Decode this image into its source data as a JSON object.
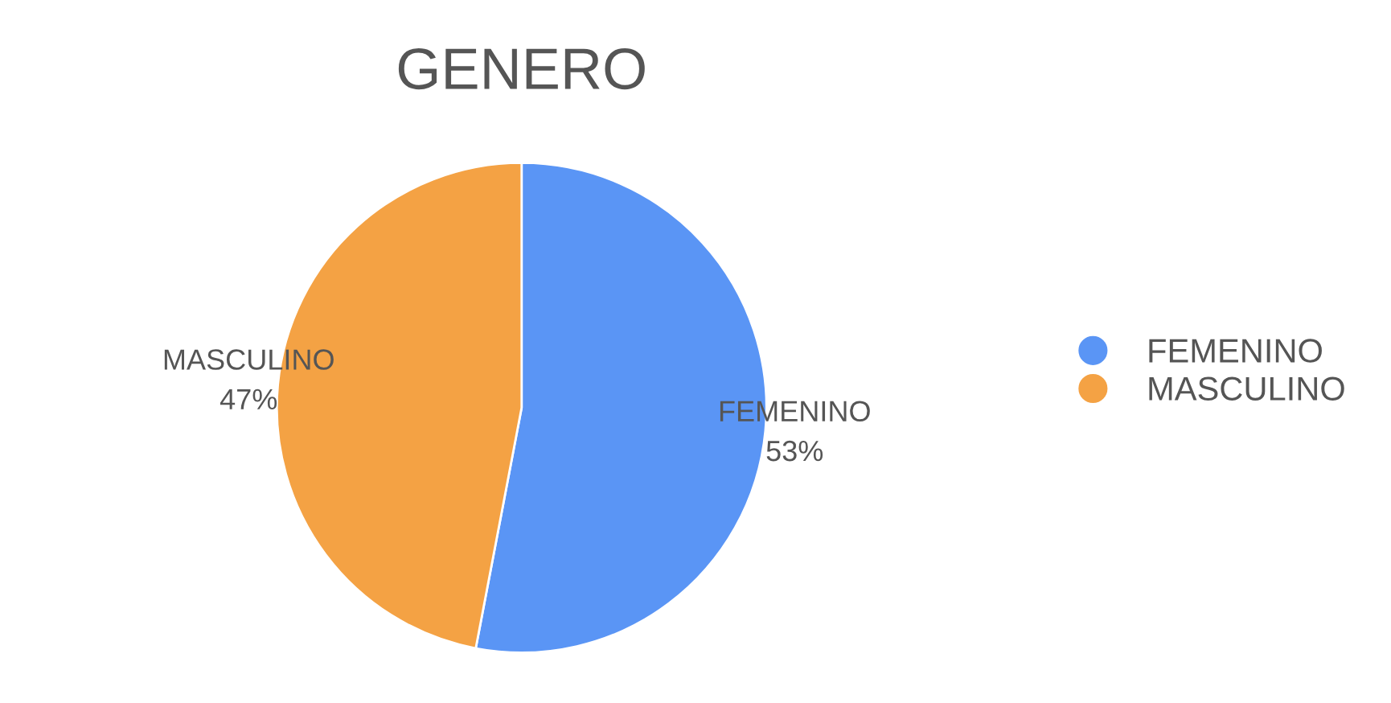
{
  "chart_data": {
    "type": "pie",
    "title": "GENERO",
    "categories": [
      "FEMENINO",
      "MASCULINO"
    ],
    "values": [
      53,
      47
    ],
    "value_labels": [
      "53%",
      "47%"
    ],
    "colors": [
      "#5a95f5",
      "#f4a244"
    ],
    "legend": "right"
  }
}
